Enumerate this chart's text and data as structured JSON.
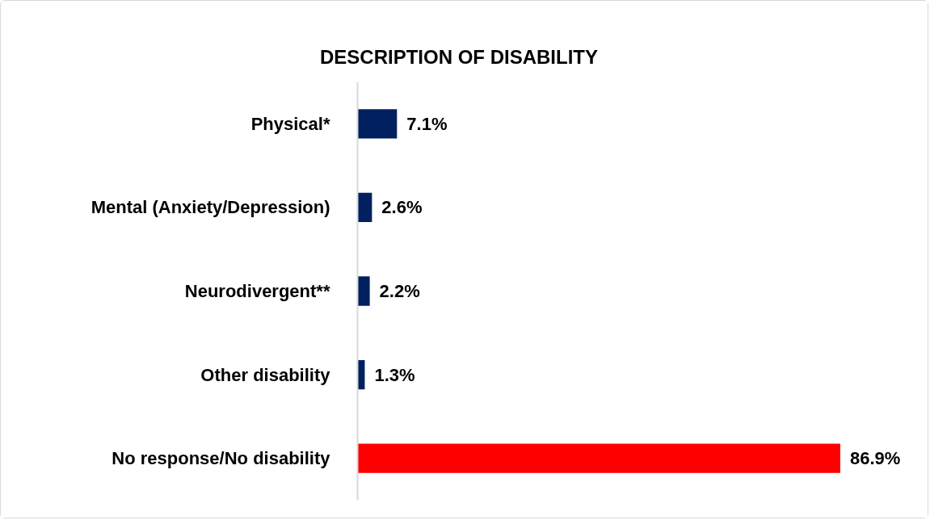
{
  "chart_data": {
    "type": "bar",
    "orientation": "horizontal",
    "title": "DESCRIPTION OF DISABILITY",
    "categories": [
      "Physical*",
      "Mental (Anxiety/Depression)",
      "Neurodivergent**",
      "Other disability",
      "No response/No disability"
    ],
    "values": [
      7.1,
      2.6,
      2.2,
      1.3,
      86.9
    ],
    "colors": [
      "#002060",
      "#002060",
      "#002060",
      "#002060",
      "#ff0000"
    ],
    "value_labels": [
      "7.1%",
      "2.6%",
      "2.2%",
      "1.3%",
      "86.9%"
    ],
    "tick_labels": "y"
  }
}
